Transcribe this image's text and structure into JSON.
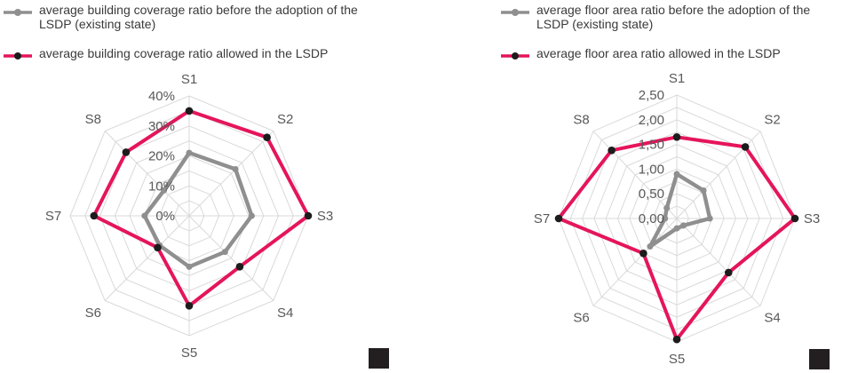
{
  "figure": {
    "description_colors": {
      "series_before_color": "#8f8f8f",
      "series_allowed_color": "#e5155b",
      "allowed_marker_color": "#1c1c1c",
      "grid_color": "#d9d9d9",
      "axis_text_color": "#595959",
      "legend_text_color": "#3a3a3a",
      "artifact_square_color": "#231f20"
    },
    "artifacts": [
      {
        "name": "black-square-left"
      },
      {
        "name": "black-square-right"
      }
    ]
  },
  "chart_data": [
    {
      "type": "radar",
      "title": "",
      "categories": [
        "S1",
        "S2",
        "S3",
        "S4",
        "S5",
        "S6",
        "S7",
        "S8"
      ],
      "series": [
        {
          "name": "average building coverage ratio before the adoption of the LSDP (existing state)",
          "color": "#8f8f8f",
          "marker_color": "#8f8f8f",
          "values": [
            21,
            22,
            21,
            17,
            17,
            14,
            15,
            12
          ]
        },
        {
          "name": "average building coverage ratio allowed in the LSDP",
          "color": "#e5155b",
          "marker_color": "#1c1c1c",
          "values": [
            35,
            37,
            40,
            24,
            30,
            15,
            32,
            30
          ]
        }
      ],
      "rmin": 0,
      "rmax": 40,
      "ring_step": 5,
      "tick_values": [
        0,
        10,
        20,
        30,
        40
      ],
      "tick_labels": [
        "0%",
        "10%",
        "20%",
        "30%",
        "40%"
      ],
      "grid": true,
      "legend_position": "top-left"
    },
    {
      "type": "radar",
      "title": "",
      "categories": [
        "S1",
        "S2",
        "S3",
        "S4",
        "S5",
        "S6",
        "S7",
        "S8"
      ],
      "series": [
        {
          "name": "average floor area ratio before the adoption of the LSDP (existing state)",
          "color": "#8f8f8f",
          "marker_color": "#8f8f8f",
          "values": [
            0.9,
            0.8,
            0.7,
            0.2,
            0.2,
            0.8,
            0.25,
            0.3
          ]
        },
        {
          "name": "average floor area ratio allowed in the LSDP",
          "color": "#e5155b",
          "marker_color": "#1c1c1c",
          "values": [
            1.65,
            2.05,
            2.5,
            1.55,
            2.45,
            1.0,
            2.5,
            1.95
          ]
        }
      ],
      "rmin": 0,
      "rmax": 2.5,
      "ring_step": 0.25,
      "tick_values": [
        0,
        0.5,
        1,
        1.5,
        2,
        2.5
      ],
      "tick_labels": [
        "0,00",
        "0,50",
        "1,00",
        "1,50",
        "2,00",
        "2,50"
      ],
      "grid": true,
      "legend_position": "top-left"
    }
  ]
}
